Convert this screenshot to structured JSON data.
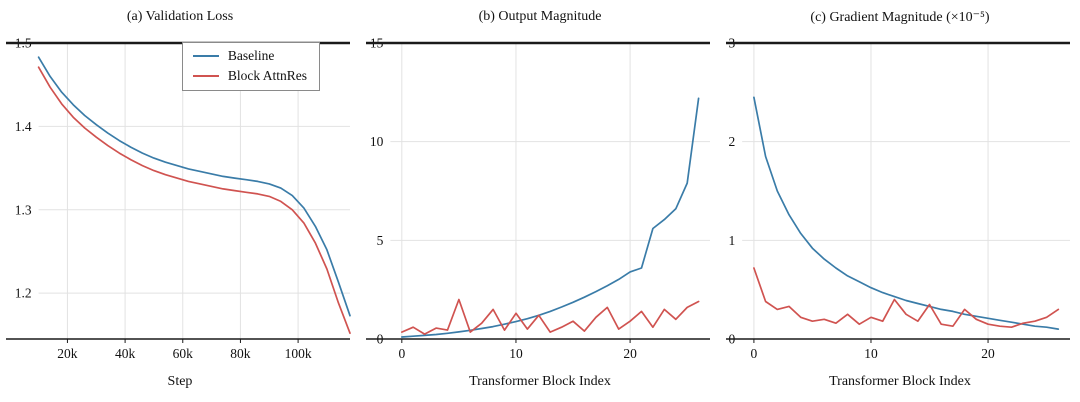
{
  "figure": {
    "colors": {
      "baseline": "#3a7ca8",
      "block_attnres": "#d05350",
      "grid": "#e2e2e2",
      "spine": "#1a1a1a",
      "background": "#ffffff"
    }
  },
  "chart_data": [
    {
      "type": "line",
      "title": "(a) Validation Loss",
      "xlabel": "Step",
      "xlim": [
        10,
        118
      ],
      "ylim": [
        1.145,
        1.5
      ],
      "xticks": [
        20,
        40,
        60,
        80,
        100
      ],
      "xtick_labels": [
        "20k",
        "40k",
        "60k",
        "80k",
        "100k"
      ],
      "yticks": [
        1.2,
        1.3,
        1.4,
        1.5
      ],
      "ytick_labels": [
        "1.2",
        "1.3",
        "1.4",
        "1.5"
      ],
      "grid": true,
      "legend_position": "top-right-inside",
      "x": [
        10,
        14,
        18,
        22,
        26,
        30,
        34,
        38,
        42,
        46,
        50,
        54,
        58,
        62,
        66,
        70,
        74,
        78,
        82,
        86,
        90,
        94,
        98,
        102,
        106,
        110,
        114,
        118
      ],
      "series": [
        {
          "name": "Baseline",
          "color": "#3a7ca8",
          "values": [
            1.483,
            1.46,
            1.441,
            1.426,
            1.413,
            1.402,
            1.392,
            1.383,
            1.375,
            1.368,
            1.362,
            1.357,
            1.353,
            1.349,
            1.346,
            1.343,
            1.34,
            1.338,
            1.336,
            1.334,
            1.331,
            1.326,
            1.317,
            1.302,
            1.28,
            1.252,
            1.213,
            1.173
          ]
        },
        {
          "name": "Block AttnRes",
          "color": "#d05350",
          "values": [
            1.471,
            1.447,
            1.427,
            1.411,
            1.398,
            1.387,
            1.377,
            1.368,
            1.36,
            1.353,
            1.347,
            1.342,
            1.338,
            1.334,
            1.331,
            1.328,
            1.325,
            1.323,
            1.321,
            1.319,
            1.316,
            1.31,
            1.3,
            1.284,
            1.26,
            1.229,
            1.188,
            1.152
          ]
        }
      ]
    },
    {
      "type": "line",
      "title": "(b) Output Magnitude",
      "xlabel": "Transformer Block Index",
      "xlim": [
        -1,
        27
      ],
      "ylim": [
        0,
        15
      ],
      "xticks": [
        0,
        10,
        20
      ],
      "xtick_labels": [
        "0",
        "10",
        "20"
      ],
      "yticks": [
        0,
        5,
        10,
        15
      ],
      "ytick_labels": [
        "0",
        "5",
        "10",
        "15"
      ],
      "grid": true,
      "x": [
        0,
        1,
        2,
        3,
        4,
        5,
        6,
        7,
        8,
        9,
        10,
        11,
        12,
        13,
        14,
        15,
        16,
        17,
        18,
        19,
        20,
        21,
        22,
        23,
        24,
        25,
        26
      ],
      "series": [
        {
          "name": "Baseline",
          "color": "#3a7ca8",
          "values": [
            0.1,
            0.14,
            0.18,
            0.23,
            0.29,
            0.36,
            0.44,
            0.53,
            0.63,
            0.75,
            0.88,
            1.03,
            1.2,
            1.4,
            1.62,
            1.86,
            2.12,
            2.4,
            2.7,
            3.02,
            3.4,
            3.6,
            5.6,
            6.05,
            6.6,
            7.9,
            12.2
          ]
        },
        {
          "name": "Block AttnRes",
          "color": "#d05350",
          "values": [
            0.35,
            0.6,
            0.25,
            0.55,
            0.45,
            2.0,
            0.35,
            0.8,
            1.5,
            0.45,
            1.3,
            0.5,
            1.2,
            0.35,
            0.6,
            0.9,
            0.4,
            1.1,
            1.6,
            0.5,
            0.9,
            1.4,
            0.6,
            1.5,
            1.0,
            1.6,
            1.9
          ]
        }
      ]
    },
    {
      "type": "line",
      "title": "(c) Gradient Magnitude (×10⁻⁵)",
      "xlabel": "Transformer Block Index",
      "xlim": [
        -1,
        27
      ],
      "ylim": [
        0,
        3
      ],
      "xticks": [
        0,
        10,
        20
      ],
      "xtick_labels": [
        "0",
        "10",
        "20"
      ],
      "yticks": [
        0,
        1,
        2,
        3
      ],
      "ytick_labels": [
        "0",
        "1",
        "2",
        "3"
      ],
      "grid": true,
      "x": [
        0,
        1,
        2,
        3,
        4,
        5,
        6,
        7,
        8,
        9,
        10,
        11,
        12,
        13,
        14,
        15,
        16,
        17,
        18,
        19,
        20,
        21,
        22,
        23,
        24,
        25,
        26
      ],
      "series": [
        {
          "name": "Baseline",
          "color": "#3a7ca8",
          "values": [
            2.45,
            1.85,
            1.5,
            1.26,
            1.07,
            0.92,
            0.81,
            0.72,
            0.64,
            0.58,
            0.52,
            0.47,
            0.43,
            0.39,
            0.36,
            0.33,
            0.3,
            0.28,
            0.25,
            0.23,
            0.21,
            0.19,
            0.17,
            0.15,
            0.13,
            0.12,
            0.1
          ]
        },
        {
          "name": "Block AttnRes",
          "color": "#d05350",
          "values": [
            0.72,
            0.38,
            0.3,
            0.33,
            0.22,
            0.18,
            0.2,
            0.16,
            0.25,
            0.15,
            0.22,
            0.18,
            0.4,
            0.25,
            0.18,
            0.35,
            0.15,
            0.13,
            0.3,
            0.2,
            0.15,
            0.13,
            0.12,
            0.16,
            0.18,
            0.22,
            0.3
          ]
        }
      ]
    }
  ]
}
